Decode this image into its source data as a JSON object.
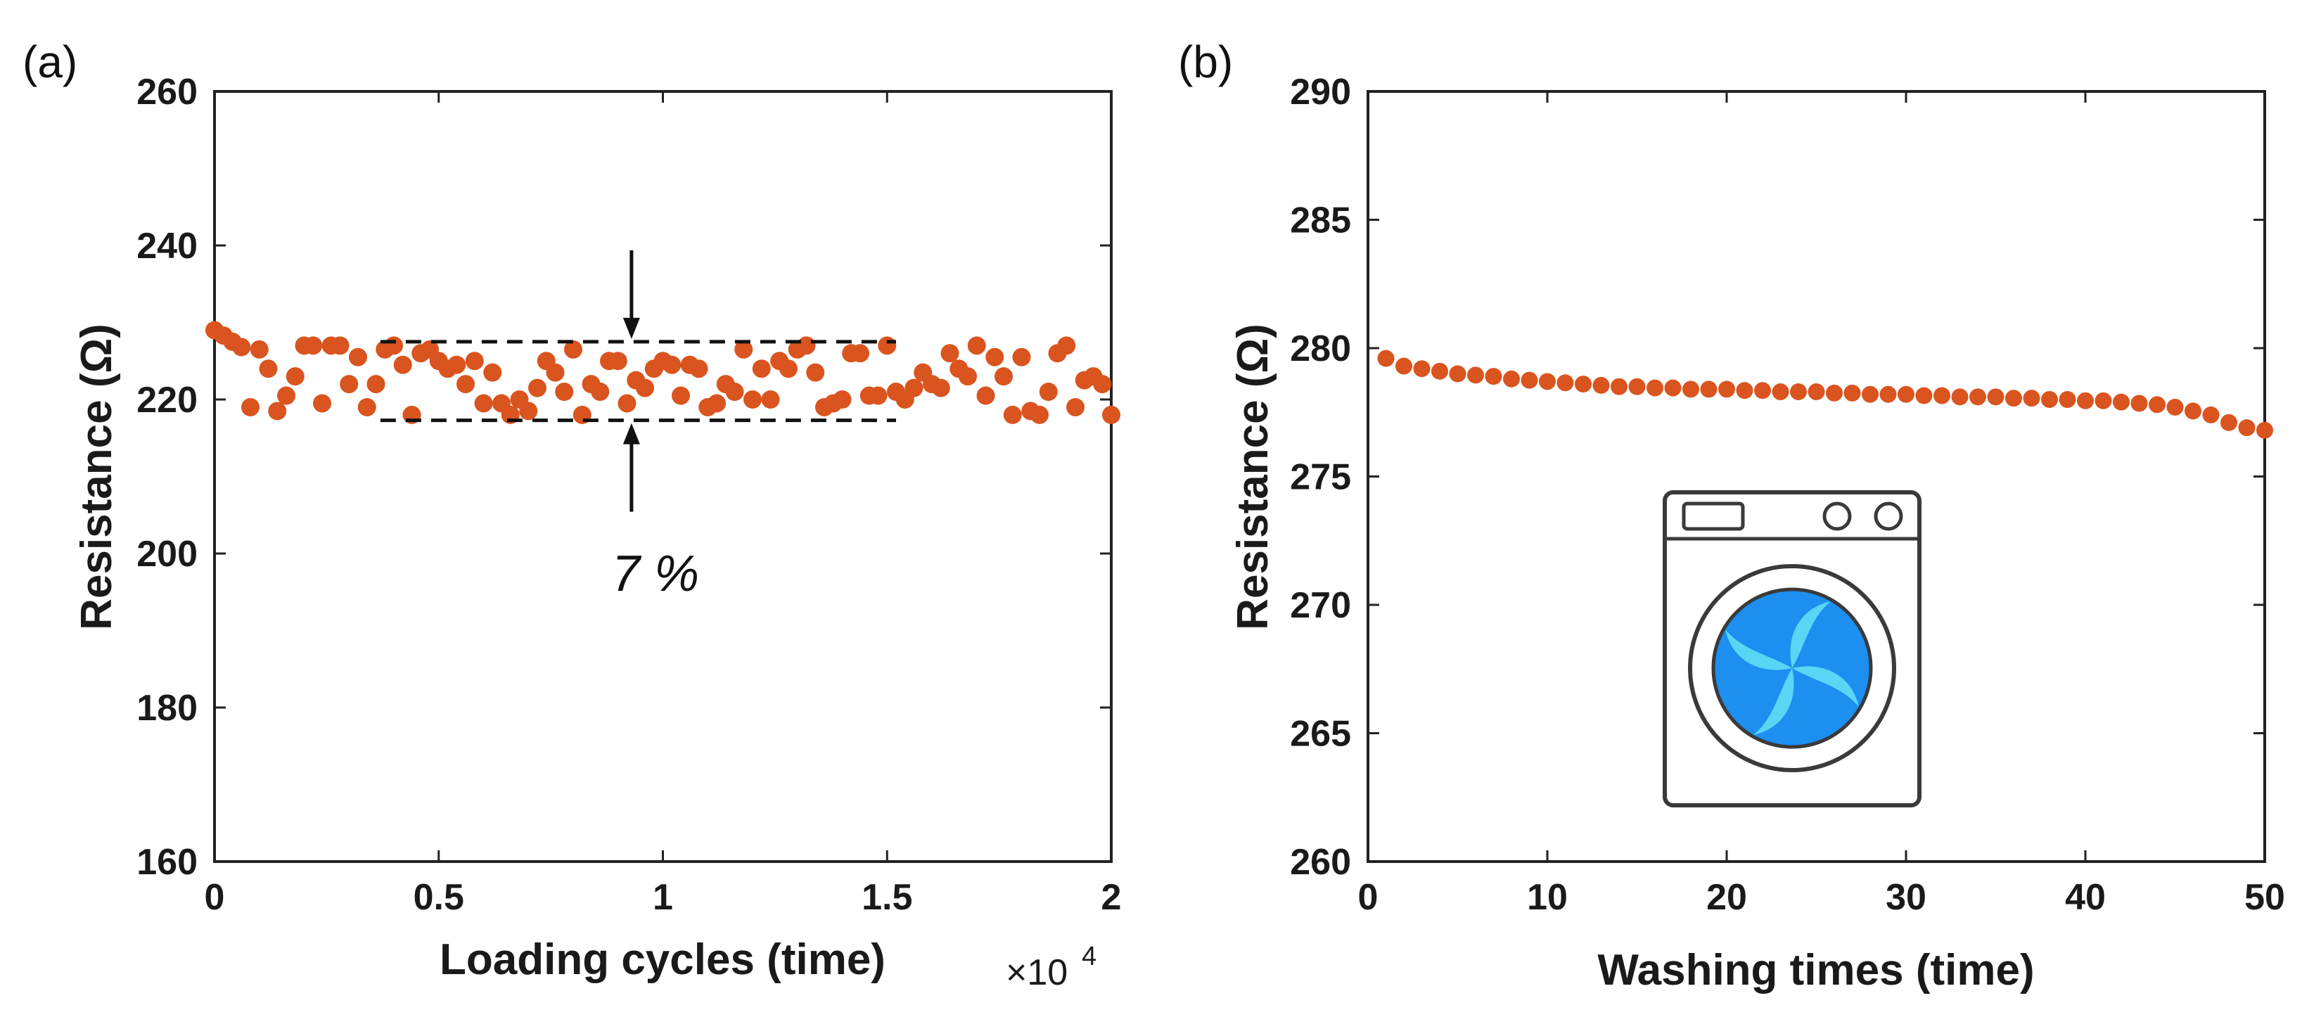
{
  "colors": {
    "marker": "#d9541e",
    "axis": "#222222",
    "drum_outer": "#1c8ff0",
    "drum_light": "#5ad6f5"
  },
  "chart_data": [
    {
      "type": "scatter",
      "panel_label": "(a)",
      "xlabel": "Loading cycles (time)",
      "ylabel": "Resistance (Ω)",
      "x_multiplier": "×10",
      "x_multiplier_exp": "4",
      "xlim": [
        0,
        2
      ],
      "ylim": [
        160,
        260
      ],
      "xticks": [
        0,
        0.5,
        1,
        1.5,
        2
      ],
      "xtick_labels": [
        "0",
        "0.5",
        "1",
        "1.5",
        "2"
      ],
      "yticks": [
        160,
        180,
        200,
        220,
        240,
        260
      ],
      "ytick_labels": [
        "160",
        "180",
        "200",
        "220",
        "240",
        "260"
      ],
      "band": {
        "x_start": 0.37,
        "x_end": 1.52,
        "y_upper": 227.5,
        "y_lower": 217.3
      },
      "arrow_x": 0.93,
      "annotation": "7 %",
      "series": [
        {
          "name": "Resistance",
          "x": [
            0.0,
            0.02,
            0.04,
            0.06,
            0.08,
            0.1,
            0.12,
            0.14,
            0.16,
            0.18,
            0.2,
            0.22,
            0.24,
            0.26,
            0.28,
            0.3,
            0.32,
            0.34,
            0.36,
            0.38,
            0.4,
            0.42,
            0.44,
            0.46,
            0.48,
            0.5,
            0.52,
            0.54,
            0.56,
            0.58,
            0.6,
            0.62,
            0.64,
            0.66,
            0.68,
            0.7,
            0.72,
            0.74,
            0.76,
            0.78,
            0.8,
            0.82,
            0.84,
            0.86,
            0.88,
            0.9,
            0.92,
            0.94,
            0.96,
            0.98,
            1.0,
            1.02,
            1.04,
            1.06,
            1.08,
            1.1,
            1.12,
            1.14,
            1.16,
            1.18,
            1.2,
            1.22,
            1.24,
            1.26,
            1.28,
            1.3,
            1.32,
            1.34,
            1.36,
            1.38,
            1.4,
            1.42,
            1.44,
            1.46,
            1.48,
            1.5,
            1.52,
            1.54,
            1.56,
            1.58,
            1.6,
            1.62,
            1.64,
            1.66,
            1.68,
            1.7,
            1.72,
            1.74,
            1.76,
            1.78,
            1.8,
            1.82,
            1.84,
            1.86,
            1.88,
            1.9,
            1.92,
            1.94,
            1.96,
            1.98,
            2.0
          ],
          "y": [
            229,
            228.3,
            227.5,
            226.8,
            219,
            226.5,
            224,
            218.5,
            220.5,
            223,
            227,
            227,
            219.5,
            227,
            227,
            222,
            225.5,
            219,
            222,
            226.5,
            227,
            224.5,
            218,
            226,
            226.5,
            225,
            224,
            224.5,
            222,
            225,
            219.5,
            223.5,
            219.5,
            218,
            220,
            218.5,
            221.5,
            225,
            223.5,
            221,
            226.5,
            218,
            222,
            221,
            225,
            225,
            219.5,
            222.5,
            221.5,
            224,
            225,
            224.5,
            220.5,
            224.5,
            224,
            219,
            219.5,
            222,
            221,
            226.5,
            220,
            224,
            220,
            225,
            224,
            226.5,
            227,
            223.5,
            219,
            219.5,
            220,
            226,
            226,
            220.5,
            220.5,
            227,
            221,
            220,
            221.5,
            223.5,
            222,
            221.5,
            226,
            224,
            223,
            227,
            220.5,
            225.5,
            223,
            218,
            225.5,
            218.5,
            218,
            221,
            226,
            227,
            219,
            222.5,
            223,
            222,
            218
          ]
        }
      ]
    },
    {
      "type": "scatter",
      "panel_label": "(b)",
      "xlabel": "Washing times (time)",
      "ylabel": "Resistance (Ω)",
      "xlim": [
        0,
        50
      ],
      "ylim": [
        260,
        290
      ],
      "xticks": [
        0,
        10,
        20,
        30,
        40,
        50
      ],
      "xtick_labels": [
        "0",
        "10",
        "20",
        "30",
        "40",
        "50"
      ],
      "yticks": [
        260,
        265,
        270,
        275,
        280,
        285,
        290
      ],
      "ytick_labels": [
        "260",
        "265",
        "270",
        "275",
        "280",
        "285",
        "290"
      ],
      "series": [
        {
          "name": "Resistance",
          "x": [
            1,
            2,
            3,
            4,
            5,
            6,
            7,
            8,
            9,
            10,
            11,
            12,
            13,
            14,
            15,
            16,
            17,
            18,
            19,
            20,
            21,
            22,
            23,
            24,
            25,
            26,
            27,
            28,
            29,
            30,
            31,
            32,
            33,
            34,
            35,
            36,
            37,
            38,
            39,
            40,
            41,
            42,
            43,
            44,
            45,
            46,
            47,
            48,
            49,
            50
          ],
          "y": [
            279.6,
            279.3,
            279.2,
            279.1,
            279.0,
            278.95,
            278.9,
            278.8,
            278.75,
            278.7,
            278.65,
            278.6,
            278.55,
            278.5,
            278.5,
            278.45,
            278.45,
            278.4,
            278.4,
            278.4,
            278.35,
            278.35,
            278.3,
            278.3,
            278.3,
            278.25,
            278.25,
            278.2,
            278.2,
            278.2,
            278.15,
            278.15,
            278.1,
            278.1,
            278.1,
            278.05,
            278.05,
            278.0,
            278.0,
            277.95,
            277.95,
            277.9,
            277.85,
            277.8,
            277.7,
            277.55,
            277.4,
            277.1,
            276.9,
            276.8
          ]
        }
      ]
    }
  ]
}
